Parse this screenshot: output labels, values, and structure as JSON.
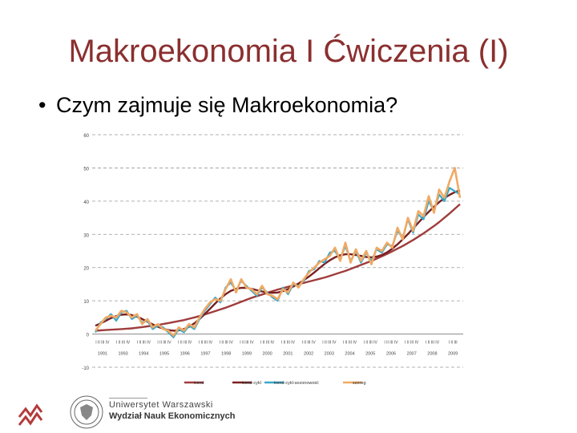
{
  "slide": {
    "title": "Makroekonomia I Ćwiczenia (I)",
    "bullet": "Czym zajmuje się Makroekonomia?"
  },
  "footer": {
    "university": "Uniwersytet Warszawski",
    "faculty": "Wydział Nauk Ekonomicznych"
  },
  "chart_data": {
    "type": "line",
    "ylim": [
      -10,
      60
    ],
    "yticks": [
      -10,
      0,
      10,
      20,
      30,
      40,
      50,
      60
    ],
    "years": [
      "1991",
      "1993",
      "1994",
      "1995",
      "1996",
      "1997",
      "1998",
      "1999",
      "2000",
      "2001",
      "2002",
      "2003",
      "2004",
      "2005",
      "2006",
      "2007",
      "2008",
      "2009"
    ],
    "quarter_labels": [
      "I II III IV",
      "I II III IV",
      "I II III IV",
      "I II III IV",
      "I II III IV",
      "I II III IV",
      "I II III IV",
      "I II III IV",
      "I II III IV",
      "I II III IV",
      "I II III IV",
      "I II III IV",
      "I II III IV",
      "I II III IV",
      "I II III IV",
      "I II III IV",
      "I II III IV",
      "I II III"
    ],
    "x_count": 71,
    "series": [
      {
        "name": "trend",
        "color": "#a03c3c",
        "values": [
          1.0,
          1.1,
          1.2,
          1.3,
          1.4,
          1.5,
          1.6,
          1.7,
          1.9,
          2.1,
          2.3,
          2.5,
          2.7,
          3.0,
          3.3,
          3.6,
          3.9,
          4.2,
          4.6,
          5.0,
          5.4,
          5.9,
          6.4,
          6.9,
          7.4,
          7.9,
          8.5,
          9.1,
          9.7,
          10.3,
          10.9,
          11.4,
          11.9,
          12.4,
          12.9,
          13.4,
          13.8,
          14.2,
          14.6,
          15.0,
          15.4,
          15.8,
          16.2,
          16.6,
          17.0,
          17.5,
          18.0,
          18.5,
          19.0,
          19.6,
          20.2,
          20.8,
          21.4,
          22.0,
          22.7,
          23.4,
          24.1,
          24.9,
          25.7,
          26.5,
          27.4,
          28.3,
          29.3,
          30.3,
          31.4,
          32.5,
          33.7,
          35.0,
          36.3,
          37.7,
          39.1
        ]
      },
      {
        "name": "trend-cykl",
        "color": "#7a2020",
        "values": [
          2.5,
          3.2,
          4.0,
          4.8,
          5.4,
          5.8,
          5.9,
          5.7,
          5.2,
          4.5,
          3.7,
          2.9,
          2.2,
          1.6,
          1.2,
          1.0,
          1.1,
          1.5,
          2.2,
          3.2,
          4.5,
          6.0,
          7.6,
          9.2,
          10.7,
          12.0,
          13.0,
          13.6,
          13.9,
          13.9,
          13.6,
          13.2,
          12.8,
          12.5,
          12.4,
          12.5,
          12.9,
          13.5,
          14.3,
          15.2,
          16.2,
          17.3,
          18.5,
          19.8,
          21.1,
          22.2,
          23.1,
          23.7,
          24.0,
          24.0,
          23.8,
          23.5,
          23.2,
          23.1,
          23.3,
          23.8,
          24.6,
          25.7,
          27.0,
          28.5,
          30.1,
          31.8,
          33.5,
          35.2,
          36.8,
          38.3,
          39.7,
          40.9,
          41.9,
          42.7,
          43.3
        ]
      },
      {
        "name": "trend-cykl-sezonowość",
        "color": "#3aa8c8",
        "values": [
          0.5,
          3.5,
          4.5,
          6.0,
          4.0,
          6.5,
          7.0,
          4.5,
          5.5,
          3.5,
          4.0,
          1.5,
          2.5,
          2.0,
          0.5,
          -1.0,
          1.5,
          0.5,
          2.5,
          1.5,
          4.5,
          7.0,
          9.0,
          11.0,
          9.5,
          14.0,
          15.5,
          13.0,
          16.0,
          14.5,
          13.0,
          11.5,
          14.0,
          12.5,
          11.0,
          10.0,
          14.0,
          12.0,
          15.0,
          14.5,
          16.0,
          19.0,
          19.5,
          22.0,
          21.5,
          24.5,
          25.0,
          22.5,
          26.5,
          22.0,
          25.0,
          21.5,
          24.5,
          22.0,
          25.5,
          24.5,
          27.0,
          26.5,
          31.0,
          29.0,
          34.5,
          30.5,
          36.0,
          34.5,
          40.0,
          37.0,
          42.0,
          40.0,
          44.0,
          43.0,
          42.0
        ]
      },
      {
        "name": "szereg",
        "color": "#f0aa64",
        "values": [
          1.0,
          3.0,
          5.0,
          5.5,
          5.0,
          7.0,
          6.5,
          5.0,
          6.0,
          3.0,
          4.5,
          2.0,
          3.0,
          1.5,
          1.0,
          -0.5,
          2.0,
          1.0,
          3.0,
          2.0,
          5.0,
          7.5,
          9.5,
          10.5,
          10.0,
          13.5,
          16.5,
          12.5,
          16.5,
          14.0,
          13.5,
          12.0,
          14.5,
          12.0,
          11.5,
          10.5,
          13.5,
          12.5,
          15.5,
          14.0,
          16.5,
          18.5,
          20.0,
          21.5,
          22.5,
          23.5,
          26.0,
          22.0,
          27.5,
          21.5,
          25.5,
          22.0,
          25.0,
          21.0,
          26.0,
          25.0,
          27.5,
          26.0,
          32.0,
          28.5,
          35.0,
          31.0,
          37.0,
          35.5,
          41.5,
          36.5,
          43.5,
          41.0,
          46.0,
          50.0,
          41.0
        ]
      }
    ]
  }
}
